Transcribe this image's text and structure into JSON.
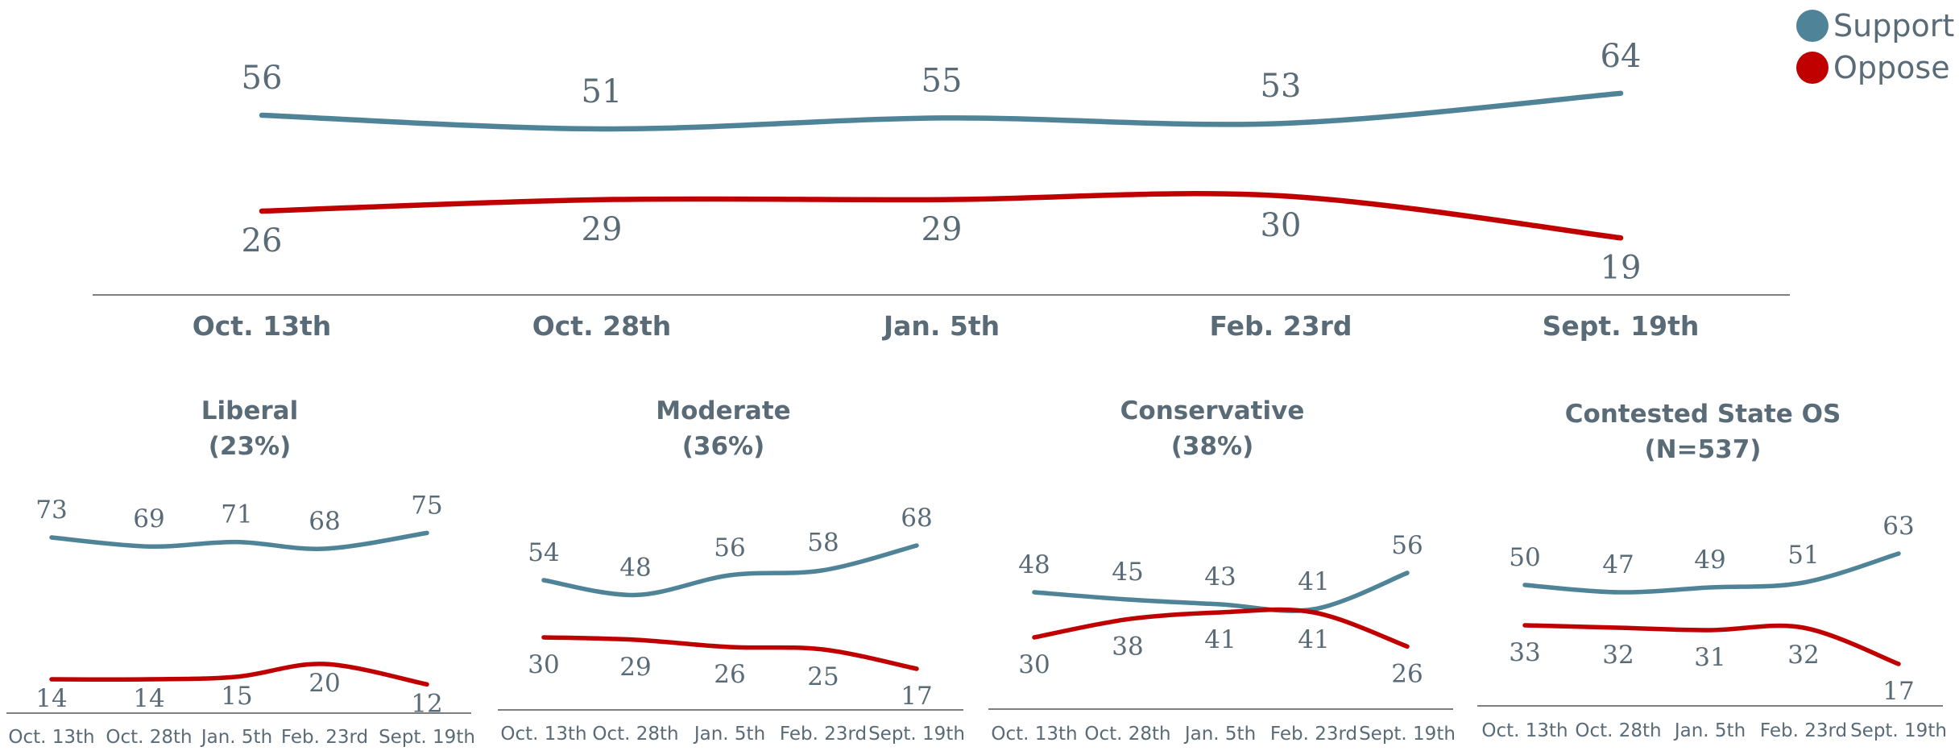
{
  "colors": {
    "support": "#4e8398",
    "oppose": "#c00000",
    "text": "#5a6b78",
    "axis": "#7f7f7f"
  },
  "legend": {
    "support_label": "Support",
    "oppose_label": "Oppose"
  },
  "chart_data": [
    {
      "type": "line",
      "title": "",
      "categories": [
        "Oct. 13th",
        "Oct. 28th",
        "Jan. 5th",
        "Feb. 23rd",
        "Sept. 19th"
      ],
      "series": [
        {
          "name": "Support",
          "values": [
            56,
            51,
            55,
            53,
            64
          ]
        },
        {
          "name": "Oppose",
          "values": [
            26,
            29,
            29,
            30,
            19
          ]
        }
      ],
      "legend_position": "top-right"
    },
    {
      "type": "line",
      "title": "Liberal",
      "subtitle": "(23%)",
      "categories": [
        "Oct. 13th",
        "Oct. 28th",
        "Jan. 5th",
        "Feb. 23rd",
        "Sept. 19th"
      ],
      "series": [
        {
          "name": "Support",
          "values": [
            73,
            69,
            71,
            68,
            75
          ]
        },
        {
          "name": "Oppose",
          "values": [
            14,
            14,
            15,
            20,
            12
          ]
        }
      ]
    },
    {
      "type": "line",
      "title": "Moderate",
      "subtitle": "(36%)",
      "categories": [
        "Oct. 13th",
        "Oct. 28th",
        "Jan. 5th",
        "Feb. 23rd",
        "Sept. 19th"
      ],
      "series": [
        {
          "name": "Support",
          "values": [
            54,
            48,
            56,
            58,
            68
          ]
        },
        {
          "name": "Oppose",
          "values": [
            30,
            29,
            26,
            25,
            17
          ]
        }
      ]
    },
    {
      "type": "line",
      "title": "Conservative",
      "subtitle": "(38%)",
      "categories": [
        "Oct. 13th",
        "Oct. 28th",
        "Jan. 5th",
        "Feb. 23rd",
        "Sept. 19th"
      ],
      "series": [
        {
          "name": "Support",
          "values": [
            48,
            45,
            43,
            41,
            56
          ]
        },
        {
          "name": "Oppose",
          "values": [
            30,
            38,
            41,
            41,
            26
          ]
        }
      ]
    },
    {
      "type": "line",
      "title": "Contested State OS",
      "subtitle": "(N=537)",
      "categories": [
        "Oct. 13th",
        "Oct. 28th",
        "Jan. 5th",
        "Feb. 23rd",
        "Sept. 19th"
      ],
      "series": [
        {
          "name": "Support",
          "values": [
            50,
            47,
            49,
            51,
            63
          ]
        },
        {
          "name": "Oppose",
          "values": [
            33,
            32,
            31,
            32,
            17
          ]
        }
      ]
    }
  ]
}
